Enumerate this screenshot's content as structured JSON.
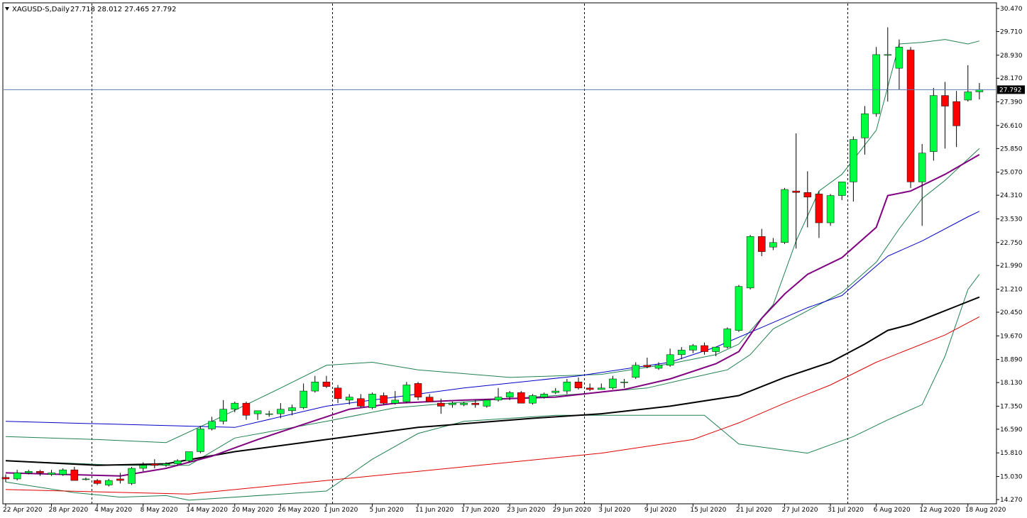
{
  "header": {
    "symbol_label": "XAGUSD-S,Daily",
    "ohlc_label": "27.718 28.012 27.465 27.792"
  },
  "colors": {
    "background": "#ffffff",
    "bull_candle": "#00ff40",
    "bear_candle": "#ff0000",
    "candle_wick": "#000000",
    "price_line": "#5f7fa8",
    "current_price_box": "#000000",
    "ma_blue": "#0000c8",
    "ma_purple": "#800080",
    "ma_black": "#000000",
    "ma_red": "#e00000",
    "bollinger_band": "#208050",
    "separator_lines": "#000000"
  },
  "chart_data": {
    "type": "candlestick",
    "symbol": "XAGUSD-S",
    "timeframe": "Daily",
    "y_range": [
      14.27,
      30.47
    ],
    "y_ticks": [
      "30.470",
      "29.710",
      "28.930",
      "28.170",
      "27.390",
      "26.610",
      "25.850",
      "25.070",
      "24.310",
      "23.530",
      "22.750",
      "21.990",
      "21.210",
      "20.450",
      "19.670",
      "18.890",
      "18.130",
      "17.350",
      "16.590",
      "15.810",
      "15.030",
      "14.270"
    ],
    "current_price": "27.792",
    "x_tick_labels": [
      {
        "index": 0,
        "label": "22 Apr 2020"
      },
      {
        "index": 4,
        "label": "28 Apr 2020"
      },
      {
        "index": 8,
        "label": "4 May 2020"
      },
      {
        "index": 12,
        "label": "8 May 2020"
      },
      {
        "index": 16,
        "label": "14 May 2020"
      },
      {
        "index": 20,
        "label": "20 May 2020"
      },
      {
        "index": 24,
        "label": "26 May 2020"
      },
      {
        "index": 28,
        "label": "1 Jun 2020"
      },
      {
        "index": 32,
        "label": "5 Jun 2020"
      },
      {
        "index": 36,
        "label": "11 Jun 2020"
      },
      {
        "index": 40,
        "label": "17 Jun 2020"
      },
      {
        "index": 44,
        "label": "23 Jun 2020"
      },
      {
        "index": 48,
        "label": "29 Jun 2020"
      },
      {
        "index": 52,
        "label": "3 Jul 2020"
      },
      {
        "index": 56,
        "label": "9 Jul 2020"
      },
      {
        "index": 60,
        "label": "15 Jul 2020"
      },
      {
        "index": 64,
        "label": "21 Jul 2020"
      },
      {
        "index": 68,
        "label": "27 Jul 2020"
      },
      {
        "index": 72,
        "label": "31 Jul 2020"
      },
      {
        "index": 76,
        "label": "6 Aug 2020"
      },
      {
        "index": 80,
        "label": "12 Aug 2020"
      },
      {
        "index": 84,
        "label": "18 Aug 2020"
      }
    ],
    "period_separators": [
      7,
      28,
      50,
      73
    ],
    "candles": [
      [
        15.0,
        15.1,
        14.85,
        14.95
      ],
      [
        14.95,
        15.25,
        14.9,
        15.15
      ],
      [
        15.15,
        15.25,
        15.1,
        15.2
      ],
      [
        15.2,
        15.25,
        15.05,
        15.15
      ],
      [
        15.1,
        15.25,
        15.05,
        15.15
      ],
      [
        15.1,
        15.3,
        15.05,
        15.25
      ],
      [
        15.25,
        15.35,
        14.9,
        14.9
      ],
      [
        14.95,
        15.0,
        14.9,
        14.95
      ],
      [
        14.9,
        14.95,
        14.75,
        14.8
      ],
      [
        14.75,
        14.95,
        14.7,
        14.9
      ],
      [
        14.95,
        15.15,
        14.8,
        14.9
      ],
      [
        14.8,
        15.35,
        14.75,
        15.3
      ],
      [
        15.3,
        15.5,
        15.2,
        15.4
      ],
      [
        15.45,
        15.6,
        15.3,
        15.4
      ],
      [
        15.4,
        15.5,
        15.35,
        15.45
      ],
      [
        15.45,
        15.6,
        15.4,
        15.55
      ],
      [
        15.55,
        15.85,
        15.5,
        15.85
      ],
      [
        15.85,
        16.7,
        15.8,
        16.6
      ],
      [
        16.6,
        17.0,
        16.55,
        16.85
      ],
      [
        16.85,
        17.55,
        16.75,
        17.25
      ],
      [
        17.25,
        17.5,
        17.15,
        17.45
      ],
      [
        17.45,
        17.5,
        16.9,
        17.05
      ],
      [
        17.1,
        17.2,
        16.9,
        17.2
      ],
      [
        17.1,
        17.2,
        17.0,
        17.1
      ],
      [
        17.1,
        17.45,
        16.95,
        17.25
      ],
      [
        17.2,
        17.4,
        17.05,
        17.3
      ],
      [
        17.3,
        18.1,
        17.25,
        17.85
      ],
      [
        17.85,
        18.35,
        17.8,
        18.15
      ],
      [
        18.15,
        18.35,
        17.95,
        18.0
      ],
      [
        17.95,
        18.05,
        17.45,
        17.6
      ],
      [
        17.55,
        17.75,
        17.4,
        17.65
      ],
      [
        17.6,
        17.75,
        17.3,
        17.35
      ],
      [
        17.3,
        17.8,
        17.25,
        17.75
      ],
      [
        17.7,
        17.8,
        17.4,
        17.45
      ],
      [
        17.45,
        17.85,
        17.4,
        17.55
      ],
      [
        17.5,
        18.15,
        17.45,
        18.05
      ],
      [
        18.1,
        18.15,
        17.55,
        17.65
      ],
      [
        17.65,
        17.75,
        17.5,
        17.5
      ],
      [
        17.45,
        17.6,
        17.1,
        17.35
      ],
      [
        17.4,
        17.5,
        17.3,
        17.45
      ],
      [
        17.4,
        17.5,
        17.35,
        17.45
      ],
      [
        17.45,
        17.55,
        17.3,
        17.4
      ],
      [
        17.35,
        17.55,
        17.3,
        17.55
      ],
      [
        17.55,
        17.95,
        17.5,
        17.65
      ],
      [
        17.65,
        17.85,
        17.55,
        17.8
      ],
      [
        17.8,
        17.85,
        17.45,
        17.45
      ],
      [
        17.45,
        17.75,
        17.4,
        17.7
      ],
      [
        17.65,
        17.8,
        17.6,
        17.75
      ],
      [
        17.8,
        17.95,
        17.75,
        17.85
      ],
      [
        17.85,
        18.25,
        17.75,
        18.15
      ],
      [
        18.15,
        18.3,
        17.9,
        17.95
      ],
      [
        17.95,
        18.1,
        17.85,
        17.9
      ],
      [
        17.9,
        18.1,
        17.9,
        17.95
      ],
      [
        17.95,
        18.35,
        17.9,
        18.25
      ],
      [
        18.15,
        18.25,
        17.95,
        18.15
      ],
      [
        18.3,
        18.8,
        18.25,
        18.7
      ],
      [
        18.7,
        18.95,
        18.6,
        18.65
      ],
      [
        18.6,
        18.8,
        18.55,
        18.7
      ],
      [
        18.7,
        19.25,
        18.65,
        19.05
      ],
      [
        19.05,
        19.3,
        18.9,
        19.2
      ],
      [
        19.2,
        19.4,
        19.1,
        19.35
      ],
      [
        19.35,
        19.45,
        19.05,
        19.15
      ],
      [
        19.15,
        19.3,
        19.0,
        19.3
      ],
      [
        19.3,
        19.95,
        19.25,
        19.9
      ],
      [
        19.85,
        21.35,
        19.8,
        21.3
      ],
      [
        21.25,
        23.0,
        21.2,
        22.95
      ],
      [
        22.95,
        23.2,
        22.3,
        22.45
      ],
      [
        22.6,
        22.9,
        22.5,
        22.75
      ],
      [
        22.75,
        24.55,
        22.7,
        24.5
      ],
      [
        24.45,
        26.35,
        22.55,
        24.4
      ],
      [
        24.4,
        25.1,
        23.25,
        24.25
      ],
      [
        24.35,
        24.45,
        22.9,
        23.4
      ],
      [
        23.4,
        24.35,
        23.3,
        24.3
      ],
      [
        24.3,
        24.75,
        24.15,
        24.75
      ],
      [
        24.75,
        26.25,
        24.1,
        26.15
      ],
      [
        26.2,
        27.25,
        25.65,
        27.0
      ],
      [
        27.0,
        29.2,
        26.9,
        28.95
      ],
      [
        28.95,
        29.85,
        27.4,
        28.95
      ],
      [
        28.5,
        29.45,
        27.8,
        29.2
      ],
      [
        29.1,
        29.2,
        24.55,
        24.75
      ],
      [
        24.75,
        26.0,
        23.3,
        25.7
      ],
      [
        25.75,
        27.85,
        25.45,
        27.6
      ],
      [
        27.6,
        28.05,
        25.85,
        27.25
      ],
      [
        27.4,
        27.75,
        25.9,
        26.6
      ],
      [
        27.45,
        28.6,
        27.4,
        27.72
      ],
      [
        27.72,
        28.01,
        27.47,
        27.79
      ]
    ],
    "indicators": {
      "ma_blue": {
        "start": 0,
        "points": [
          [
            0,
            16.85
          ],
          [
            20,
            16.65
          ],
          [
            28,
            17.35
          ],
          [
            40,
            17.95
          ],
          [
            50,
            18.35
          ],
          [
            58,
            18.8
          ],
          [
            62,
            19.3
          ],
          [
            66,
            19.95
          ],
          [
            70,
            20.6
          ],
          [
            73,
            21.0
          ],
          [
            77,
            22.3
          ],
          [
            80,
            22.8
          ],
          [
            84,
            23.6
          ],
          [
            85,
            23.78
          ]
        ]
      },
      "ma_purple": {
        "start": 0,
        "points": [
          [
            0,
            15.15
          ],
          [
            10,
            15.05
          ],
          [
            14,
            15.3
          ],
          [
            18,
            15.7
          ],
          [
            22,
            16.25
          ],
          [
            26,
            16.75
          ],
          [
            30,
            17.25
          ],
          [
            34,
            17.45
          ],
          [
            40,
            17.55
          ],
          [
            48,
            17.65
          ],
          [
            54,
            17.9
          ],
          [
            58,
            18.25
          ],
          [
            62,
            18.75
          ],
          [
            64,
            19.15
          ],
          [
            66,
            20.25
          ],
          [
            68,
            21.05
          ],
          [
            70,
            21.7
          ],
          [
            73,
            22.25
          ],
          [
            76,
            23.25
          ],
          [
            77,
            24.3
          ],
          [
            79,
            24.45
          ],
          [
            82,
            25.0
          ],
          [
            85,
            25.65
          ]
        ]
      },
      "ma_black": {
        "start": 0,
        "points": [
          [
            0,
            15.55
          ],
          [
            8,
            15.4
          ],
          [
            14,
            15.45
          ],
          [
            20,
            15.85
          ],
          [
            28,
            16.25
          ],
          [
            36,
            16.65
          ],
          [
            46,
            16.95
          ],
          [
            52,
            17.1
          ],
          [
            58,
            17.35
          ],
          [
            64,
            17.7
          ],
          [
            68,
            18.3
          ],
          [
            72,
            18.8
          ],
          [
            75,
            19.4
          ],
          [
            77,
            19.85
          ],
          [
            79,
            20.05
          ],
          [
            81,
            20.35
          ],
          [
            83,
            20.65
          ],
          [
            85,
            20.95
          ]
        ]
      },
      "ma_red": {
        "start": 0,
        "points": [
          [
            0,
            14.6
          ],
          [
            16,
            14.45
          ],
          [
            28,
            14.9
          ],
          [
            40,
            15.35
          ],
          [
            52,
            15.8
          ],
          [
            60,
            16.25
          ],
          [
            64,
            16.8
          ],
          [
            68,
            17.45
          ],
          [
            72,
            18.05
          ],
          [
            76,
            18.8
          ],
          [
            78,
            19.1
          ],
          [
            82,
            19.7
          ],
          [
            85,
            20.3
          ]
        ]
      },
      "bb_upper": {
        "start": 0,
        "points": [
          [
            0,
            16.35
          ],
          [
            8,
            16.25
          ],
          [
            14,
            16.15
          ],
          [
            18,
            16.85
          ],
          [
            24,
            17.95
          ],
          [
            28,
            18.7
          ],
          [
            32,
            18.8
          ],
          [
            36,
            18.55
          ],
          [
            44,
            18.3
          ],
          [
            52,
            18.4
          ],
          [
            58,
            18.75
          ],
          [
            62,
            19.05
          ],
          [
            64,
            19.4
          ],
          [
            67,
            20.7
          ],
          [
            69,
            22.8
          ],
          [
            71,
            24.45
          ],
          [
            73,
            25.0
          ],
          [
            76,
            26.45
          ],
          [
            78,
            29.3
          ],
          [
            80,
            29.35
          ],
          [
            82,
            29.45
          ],
          [
            84,
            29.3
          ],
          [
            85,
            29.4
          ]
        ]
      },
      "bb_lower": {
        "start": 0,
        "points": [
          [
            0,
            14.85
          ],
          [
            6,
            14.5
          ],
          [
            10,
            14.35
          ],
          [
            14,
            14.4
          ],
          [
            16,
            14.25
          ],
          [
            28,
            14.55
          ],
          [
            32,
            15.6
          ],
          [
            36,
            16.45
          ],
          [
            40,
            16.85
          ],
          [
            48,
            17.05
          ],
          [
            56,
            17.05
          ],
          [
            61,
            17.05
          ],
          [
            64,
            16.1
          ],
          [
            67,
            15.95
          ],
          [
            70,
            15.8
          ],
          [
            74,
            16.35
          ],
          [
            77,
            16.9
          ],
          [
            80,
            17.4
          ],
          [
            82,
            19.0
          ],
          [
            84,
            21.2
          ],
          [
            85,
            21.7
          ]
        ]
      },
      "bb_mid": {
        "start": 0,
        "points": [
          [
            0,
            15.55
          ],
          [
            10,
            15.4
          ],
          [
            16,
            15.4
          ],
          [
            20,
            16.3
          ],
          [
            28,
            16.85
          ],
          [
            34,
            17.3
          ],
          [
            42,
            17.55
          ],
          [
            50,
            17.75
          ],
          [
            56,
            17.95
          ],
          [
            60,
            18.3
          ],
          [
            63,
            18.55
          ],
          [
            65,
            19.05
          ],
          [
            67,
            19.9
          ],
          [
            70,
            20.5
          ],
          [
            73,
            21.1
          ],
          [
            76,
            22.1
          ],
          [
            78,
            23.2
          ],
          [
            80,
            24.2
          ],
          [
            82,
            24.8
          ],
          [
            85,
            25.85
          ]
        ]
      }
    }
  }
}
